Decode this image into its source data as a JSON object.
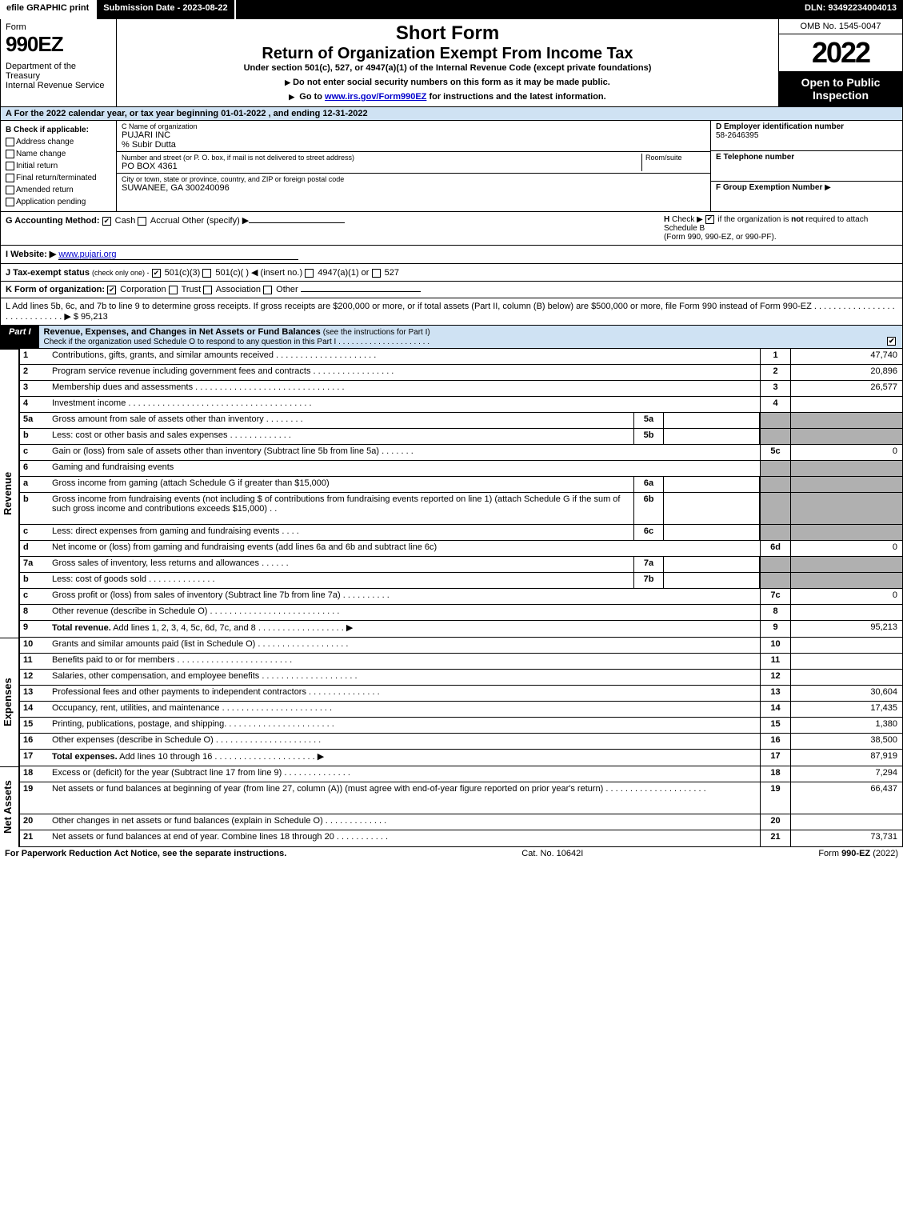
{
  "topbar": {
    "efile": "efile GRAPHIC print",
    "submission": "Submission Date - 2023-08-22",
    "dln": "DLN: 93492234004013"
  },
  "header": {
    "form_label": "Form",
    "form_number": "990EZ",
    "dept1": "Department of the Treasury",
    "dept2": "Internal Revenue Service",
    "short_form": "Short Form",
    "return_title": "Return of Organization Exempt From Income Tax",
    "under": "Under section 501(c), 527, or 4947(a)(1) of the Internal Revenue Code (except private foundations)",
    "note1": "Do not enter social security numbers on this form as it may be made public.",
    "note2_pre": "Go to ",
    "note2_link": "www.irs.gov/Form990EZ",
    "note2_post": " for instructions and the latest information.",
    "omb": "OMB No. 1545-0047",
    "year": "2022",
    "open": "Open to Public Inspection"
  },
  "section_a": "A  For the 2022 calendar year, or tax year beginning 01-01-2022  , and ending 12-31-2022",
  "box_b": {
    "title": "B  Check if applicable:",
    "items": [
      "Address change",
      "Name change",
      "Initial return",
      "Final return/terminated",
      "Amended return",
      "Application pending"
    ]
  },
  "box_c": {
    "name_lbl": "C Name of organization",
    "name_val": "PUJARI INC",
    "care_of": "% Subir Dutta",
    "addr_lbl": "Number and street (or P. O. box, if mail is not delivered to street address)",
    "room_lbl": "Room/suite",
    "addr_val": "PO BOX 4361",
    "city_lbl": "City or town, state or province, country, and ZIP or foreign postal code",
    "city_val": "SUWANEE, GA  300240096"
  },
  "box_d": {
    "ein_lbl": "D Employer identification number",
    "ein_val": "58-2646395",
    "tel_lbl": "E Telephone number",
    "tel_val": "",
    "grp_lbl": "F Group Exemption Number",
    "grp_arrow": "▶"
  },
  "line_g": {
    "label": "G Accounting Method:",
    "cash": "Cash",
    "accrual": "Accrual",
    "other": "Other (specify) ▶"
  },
  "line_h": {
    "text": "H  Check ▶         if the organization is not required to attach Schedule B",
    "sub": "(Form 990, 990-EZ, or 990-PF)."
  },
  "line_i": {
    "label": "I Website: ▶",
    "val": "www.pujari.org"
  },
  "line_j": {
    "label": "J Tax-exempt status",
    "sub": "(check only one) -",
    "opt1": "501(c)(3)",
    "opt2": "501(c)(   ) ◀ (insert no.)",
    "opt3": "4947(a)(1) or",
    "opt4": "527"
  },
  "line_k": {
    "label": "K Form of organization:",
    "opts": [
      "Corporation",
      "Trust",
      "Association",
      "Other"
    ]
  },
  "line_l": {
    "text": "L Add lines 5b, 6c, and 7b to line 9 to determine gross receipts. If gross receipts are $200,000 or more, or if total assets (Part II, column (B) below) are $500,000 or more, file Form 990 instead of Form 990-EZ .  .  .  .  .  .  .  .  .  .  .  .  .  .  .  .  .  .  .  .  .  .  .  .  .  .  .  .  .  ▶ $ 95,213"
  },
  "part1": {
    "label": "Part I",
    "title": "Revenue, Expenses, and Changes in Net Assets or Fund Balances",
    "sub": "(see the instructions for Part I)",
    "check_line": "Check if the organization used Schedule O to respond to any question in this Part I  .  .  .  .  .  .  .  .  .  .  .  .  .  .  .  .  .  .  .  .  ."
  },
  "side_labels": {
    "revenue": "Revenue",
    "expenses": "Expenses",
    "netassets": "Net Assets"
  },
  "rows": [
    {
      "n": "1",
      "d": "Contributions, gifts, grants, and similar amounts received  .  .  .  .  .  .  .  .  .  .  .  .  .  .  .  .  .  .  .  .  .",
      "ln": "1",
      "amt": "47,740"
    },
    {
      "n": "2",
      "d": "Program service revenue including government fees and contracts  .  .  .  .  .  .  .  .  .  .  .  .  .  .  .  .  .",
      "ln": "2",
      "amt": "20,896"
    },
    {
      "n": "3",
      "d": "Membership dues and assessments  .  .  .  .  .  .  .  .  .  .  .  .  .  .  .  .  .  .  .  .  .  .  .  .  .  .  .  .  .  .  .",
      "ln": "3",
      "amt": "26,577"
    },
    {
      "n": "4",
      "d": "Investment income  .  .  .  .  .  .  .  .  .  .  .  .  .  .  .  .  .  .  .  .  .  .  .  .  .  .  .  .  .  .  .  .  .  .  .  .  .  .",
      "ln": "4",
      "amt": ""
    },
    {
      "n": "5a",
      "d": "Gross amount from sale of assets other than inventory  .  .  .  .  .  .  .  .",
      "sub": "5a",
      "shade": true
    },
    {
      "n": "b",
      "d": "Less: cost or other basis and sales expenses  .  .  .  .  .  .  .  .  .  .  .  .  .",
      "sub": "5b",
      "shade": true
    },
    {
      "n": "c",
      "d": "Gain or (loss) from sale of assets other than inventory (Subtract line 5b from line 5a)  .  .  .  .  .  .  .",
      "ln": "5c",
      "amt": "0"
    },
    {
      "n": "6",
      "d": "Gaming and fundraising events",
      "nolnum": true,
      "shade": true
    },
    {
      "n": "a",
      "d": "Gross income from gaming (attach Schedule G if greater than $15,000)",
      "sub": "6a",
      "shade": true
    },
    {
      "n": "b",
      "d": "Gross income from fundraising events (not including $                      of contributions from fundraising events reported on line 1) (attach Schedule G if the sum of such gross income and contributions exceeds $15,000)   .   .",
      "sub": "6b",
      "shade": true,
      "tall": true
    },
    {
      "n": "c",
      "d": "Less: direct expenses from gaming and fundraising events   .   .   .   .",
      "sub": "6c",
      "shade": true
    },
    {
      "n": "d",
      "d": "Net income or (loss) from gaming and fundraising events (add lines 6a and 6b and subtract line 6c)",
      "ln": "6d",
      "amt": "0"
    },
    {
      "n": "7a",
      "d": "Gross sales of inventory, less returns and allowances  .  .  .  .  .  .",
      "sub": "7a",
      "shade": true
    },
    {
      "n": "b",
      "d": "Less: cost of goods sold       .   .   .   .   .   .   .   .   .   .   .   .   .   .",
      "sub": "7b",
      "shade": true
    },
    {
      "n": "c",
      "d": "Gross profit or (loss) from sales of inventory (Subtract line 7b from line 7a)  .  .  .  .  .  .  .  .  .  .",
      "ln": "7c",
      "amt": "0"
    },
    {
      "n": "8",
      "d": "Other revenue (describe in Schedule O)  .  .  .  .  .  .  .  .  .  .  .  .  .  .  .  .  .  .  .  .  .  .  .  .  .  .  .",
      "ln": "8",
      "amt": ""
    },
    {
      "n": "9",
      "d": "Total revenue. Add lines 1, 2, 3, 4, 5c, 6d, 7c, and 8   .   .   .   .   .   .   .   .   .   .   .   .   .   .   .   .   .   .   ▶",
      "ln": "9",
      "amt": "95,213",
      "bold": true
    }
  ],
  "exp_rows": [
    {
      "n": "10",
      "d": "Grants and similar amounts paid (list in Schedule O)  .   .   .   .   .   .   .   .   .   .   .   .   .   .   .   .   .   .   .",
      "ln": "10",
      "amt": ""
    },
    {
      "n": "11",
      "d": "Benefits paid to or for members        .   .   .   .   .   .   .   .   .   .   .   .   .   .   .   .   .   .   .   .   .   .   .   .",
      "ln": "11",
      "amt": ""
    },
    {
      "n": "12",
      "d": "Salaries, other compensation, and employee benefits .   .   .   .   .   .   .   .   .   .   .   .   .   .   .   .   .   .   .   .",
      "ln": "12",
      "amt": ""
    },
    {
      "n": "13",
      "d": "Professional fees and other payments to independent contractors  .   .   .   .   .   .   .   .   .   .   .   .   .   .   .",
      "ln": "13",
      "amt": "30,604"
    },
    {
      "n": "14",
      "d": "Occupancy, rent, utilities, and maintenance .   .   .   .   .   .   .   .   .   .   .   .   .   .   .   .   .   .   .   .   .   .   .",
      "ln": "14",
      "amt": "17,435"
    },
    {
      "n": "15",
      "d": "Printing, publications, postage, and shipping.   .   .   .   .   .   .   .   .   .   .   .   .   .   .   .   .   .   .   .   .   .   .",
      "ln": "15",
      "amt": "1,380"
    },
    {
      "n": "16",
      "d": "Other expenses (describe in Schedule O)     .   .   .   .   .   .   .   .   .   .   .   .   .   .   .   .   .   .   .   .   .   .",
      "ln": "16",
      "amt": "38,500"
    },
    {
      "n": "17",
      "d": "Total expenses. Add lines 10 through 16      .   .   .   .   .   .   .   .   .   .   .   .   .   .   .   .   .   .   .   .   .   ▶",
      "ln": "17",
      "amt": "87,919",
      "bold": true
    }
  ],
  "net_rows": [
    {
      "n": "18",
      "d": "Excess or (deficit) for the year (Subtract line 17 from line 9)        .   .   .   .   .   .   .   .   .   .   .   .   .   .",
      "ln": "18",
      "amt": "7,294"
    },
    {
      "n": "19",
      "d": "Net assets or fund balances at beginning of year (from line 27, column (A)) (must agree with end-of-year figure reported on prior year's return) .   .   .   .   .   .   .   .   .   .   .   .   .   .   .   .   .   .   .   .   .",
      "ln": "19",
      "amt": "66,437",
      "tall": true
    },
    {
      "n": "20",
      "d": "Other changes in net assets or fund balances (explain in Schedule O) .   .   .   .   .   .   .   .   .   .   .   .   .",
      "ln": "20",
      "amt": ""
    },
    {
      "n": "21",
      "d": "Net assets or fund balances at end of year. Combine lines 18 through 20 .   .   .   .   .   .   .   .   .   .   .",
      "ln": "21",
      "amt": "73,731"
    }
  ],
  "footer": {
    "left": "For Paperwork Reduction Act Notice, see the separate instructions.",
    "center": "Cat. No. 10642I",
    "right_pre": "Form ",
    "right_bold": "990-EZ",
    "right_post": " (2022)"
  },
  "colors": {
    "header_blue": "#cfe2f3",
    "shade_gray": "#b0b0b0"
  }
}
